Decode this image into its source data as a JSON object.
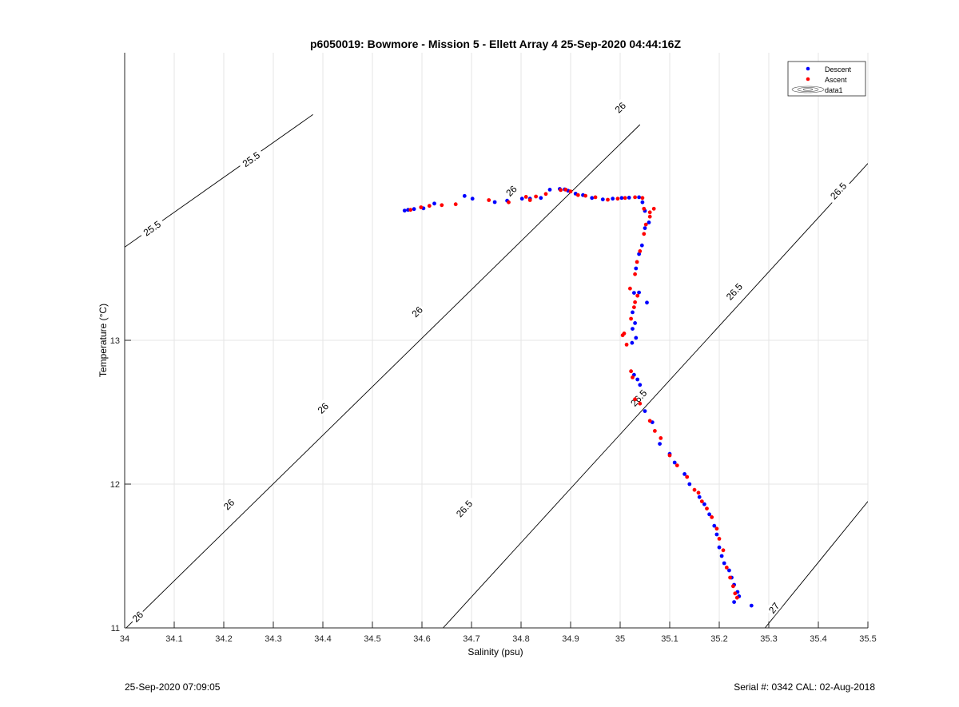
{
  "footer": {
    "timestamp": "25-Sep-2020 07:09:05",
    "serial": "Serial #: 0342  CAL: 02-Aug-2018"
  },
  "chart_data": {
    "type": "scatter",
    "title": "p6050019: Bowmore - Mission 5 - Ellett Array 4 25-Sep-2020 04:44:16Z",
    "xlabel": "Salinity (psu)",
    "ylabel": "Temperature (°C)",
    "xlim": [
      34,
      35.5
    ],
    "ylim": [
      11,
      14.3
    ],
    "xticks": [
      34,
      34.1,
      34.2,
      34.3,
      34.4,
      34.5,
      34.6,
      34.7,
      34.8,
      34.9,
      35,
      35.1,
      35.2,
      35.3,
      35.4,
      35.5
    ],
    "xtick_labels": [
      "34",
      "34.1",
      "34.2",
      "34.3",
      "34.4",
      "34.5",
      "34.6",
      "34.7",
      "34.8",
      "34.9",
      "35",
      "35.1",
      "35.2",
      "35.3",
      "35.4",
      "35.5"
    ],
    "yticks": [
      11,
      12,
      13
    ],
    "ytick_labels": [
      "11",
      "12",
      "13"
    ],
    "grid": true,
    "legend_position": "top-right",
    "legend": [
      "Descent",
      "Ascent",
      "data1"
    ],
    "colors": {
      "descent": "#0000ff",
      "ascent": "#ff0000",
      "contour": "#000000",
      "grid": "#e6e6e6"
    },
    "series": [
      {
        "name": "Descent",
        "color": "#0000ff",
        "points": [
          [
            34.565,
            13.902
          ],
          [
            34.572,
            13.907
          ],
          [
            34.584,
            13.913
          ],
          [
            34.603,
            13.918
          ],
          [
            34.625,
            13.951
          ],
          [
            34.686,
            14.004
          ],
          [
            34.702,
            13.985
          ],
          [
            34.747,
            13.961
          ],
          [
            34.772,
            13.971
          ],
          [
            34.802,
            13.985
          ],
          [
            34.818,
            13.985
          ],
          [
            34.84,
            13.99
          ],
          [
            34.858,
            14.048
          ],
          [
            34.878,
            14.053
          ],
          [
            34.888,
            14.05
          ],
          [
            34.895,
            14.04
          ],
          [
            34.91,
            14.02
          ],
          [
            34.925,
            14.01
          ],
          [
            34.943,
            13.99
          ],
          [
            34.965,
            13.98
          ],
          [
            34.985,
            13.985
          ],
          [
            35.003,
            13.99
          ],
          [
            35.018,
            13.992
          ],
          [
            35.038,
            13.995
          ],
          [
            35.045,
            13.96
          ],
          [
            35.05,
            13.9
          ],
          [
            35.058,
            13.82
          ],
          [
            35.05,
            13.78
          ],
          [
            35.044,
            13.66
          ],
          [
            35.038,
            13.6
          ],
          [
            35.032,
            13.5
          ],
          [
            35.028,
            13.33
          ],
          [
            35.038,
            13.333
          ],
          [
            35.054,
            13.262
          ],
          [
            35.025,
            13.195
          ],
          [
            35.03,
            13.12
          ],
          [
            35.025,
            13.08
          ],
          [
            35.032,
            13.017
          ],
          [
            35.024,
            12.982
          ],
          [
            35.028,
            12.76
          ],
          [
            35.035,
            12.728
          ],
          [
            35.04,
            12.69
          ],
          [
            35.05,
            12.508
          ],
          [
            35.065,
            12.43
          ],
          [
            35.08,
            12.28
          ],
          [
            35.1,
            12.21
          ],
          [
            35.11,
            12.15
          ],
          [
            35.13,
            12.07
          ],
          [
            35.14,
            12.0
          ],
          [
            35.16,
            11.91
          ],
          [
            35.17,
            11.86
          ],
          [
            35.18,
            11.79
          ],
          [
            35.19,
            11.71
          ],
          [
            35.195,
            11.65
          ],
          [
            35.2,
            11.56
          ],
          [
            35.205,
            11.5
          ],
          [
            35.21,
            11.45
          ],
          [
            35.22,
            11.4
          ],
          [
            35.225,
            11.35
          ],
          [
            35.23,
            11.3
          ],
          [
            35.237,
            11.25
          ],
          [
            35.24,
            11.22
          ],
          [
            35.23,
            11.18
          ],
          [
            35.265,
            11.155
          ]
        ]
      },
      {
        "name": "Ascent",
        "color": "#ff0000",
        "points": [
          [
            34.577,
            13.907
          ],
          [
            34.598,
            13.925
          ],
          [
            34.615,
            13.935
          ],
          [
            34.64,
            13.94
          ],
          [
            34.668,
            13.946
          ],
          [
            34.735,
            13.975
          ],
          [
            34.775,
            13.96
          ],
          [
            34.81,
            13.998
          ],
          [
            34.818,
            13.975
          ],
          [
            34.83,
            14.0
          ],
          [
            34.85,
            14.018
          ],
          [
            34.88,
            14.045
          ],
          [
            34.89,
            14.048
          ],
          [
            34.9,
            14.035
          ],
          [
            34.915,
            14.01
          ],
          [
            34.93,
            14.005
          ],
          [
            34.95,
            13.995
          ],
          [
            34.975,
            13.978
          ],
          [
            34.995,
            13.985
          ],
          [
            35.01,
            13.99
          ],
          [
            35.03,
            13.995
          ],
          [
            35.045,
            13.99
          ],
          [
            35.048,
            13.915
          ],
          [
            35.06,
            13.89
          ],
          [
            35.068,
            13.915
          ],
          [
            35.06,
            13.86
          ],
          [
            35.052,
            13.805
          ],
          [
            35.048,
            13.74
          ],
          [
            35.04,
            13.62
          ],
          [
            35.034,
            13.545
          ],
          [
            35.03,
            13.46
          ],
          [
            35.02,
            13.36
          ],
          [
            35.035,
            13.31
          ],
          [
            35.03,
            13.265
          ],
          [
            35.028,
            13.23
          ],
          [
            35.022,
            13.15
          ],
          [
            35.008,
            13.048
          ],
          [
            35.005,
            13.035
          ],
          [
            35.013,
            12.97
          ],
          [
            35.022,
            12.785
          ],
          [
            35.025,
            12.742
          ],
          [
            35.03,
            12.59
          ],
          [
            35.04,
            12.56
          ],
          [
            35.06,
            12.44
          ],
          [
            35.07,
            12.37
          ],
          [
            35.082,
            12.32
          ],
          [
            35.1,
            12.2
          ],
          [
            35.115,
            12.13
          ],
          [
            35.135,
            12.05
          ],
          [
            35.15,
            11.96
          ],
          [
            35.158,
            11.94
          ],
          [
            35.165,
            11.88
          ],
          [
            35.175,
            11.83
          ],
          [
            35.185,
            11.77
          ],
          [
            35.195,
            11.69
          ],
          [
            35.2,
            11.62
          ],
          [
            35.208,
            11.54
          ],
          [
            35.215,
            11.42
          ],
          [
            35.222,
            11.35
          ],
          [
            35.228,
            11.29
          ],
          [
            35.232,
            11.24
          ],
          [
            35.236,
            11.21
          ]
        ]
      }
    ],
    "contours": [
      {
        "level": "25.5",
        "lines": [
          [
            [
              34.0,
              13.648
            ],
            [
              34.38,
              14.57
            ]
          ]
        ],
        "labels": [
          {
            "text": "25.5",
            "at": [
              34.055,
              13.78
            ]
          },
          {
            "text": "25.5",
            "at": [
              34.255,
              14.26
            ]
          }
        ]
      },
      {
        "level": "26",
        "lines": [
          [
            [
              34.0,
              10.99
            ],
            [
              35.04,
              14.5
            ]
          ]
        ],
        "labels": [
          {
            "text": "26",
            "at": [
              34.026,
              11.08
            ]
          },
          {
            "text": "26",
            "at": [
              34.21,
              11.86
            ]
          },
          {
            "text": "26",
            "at": [
              34.4,
              12.53
            ]
          },
          {
            "text": "26",
            "at": [
              34.59,
              13.2
            ]
          },
          {
            "text": "26",
            "at": [
              34.78,
              14.04
            ]
          },
          {
            "text": "26",
            "at": [
              35.0,
              14.62
            ]
          }
        ]
      },
      {
        "level": "26.5",
        "lines": [
          [
            [
              34.64,
              10.99
            ],
            [
              35.5,
              14.23
            ]
          ]
        ],
        "labels": [
          {
            "text": "26.5",
            "at": [
              34.685,
              11.83
            ]
          },
          {
            "text": "26.5",
            "at": [
              35.037,
              12.6
            ]
          },
          {
            "text": "26.5",
            "at": [
              35.23,
              13.34
            ]
          },
          {
            "text": "26.5",
            "at": [
              35.44,
              14.04
            ]
          }
        ]
      },
      {
        "level": "27",
        "lines": [
          [
            [
              35.29,
              10.99
            ],
            [
              35.5,
              11.88
            ]
          ]
        ],
        "labels": [
          {
            "text": "27",
            "at": [
              35.31,
              11.14
            ]
          }
        ]
      }
    ]
  }
}
